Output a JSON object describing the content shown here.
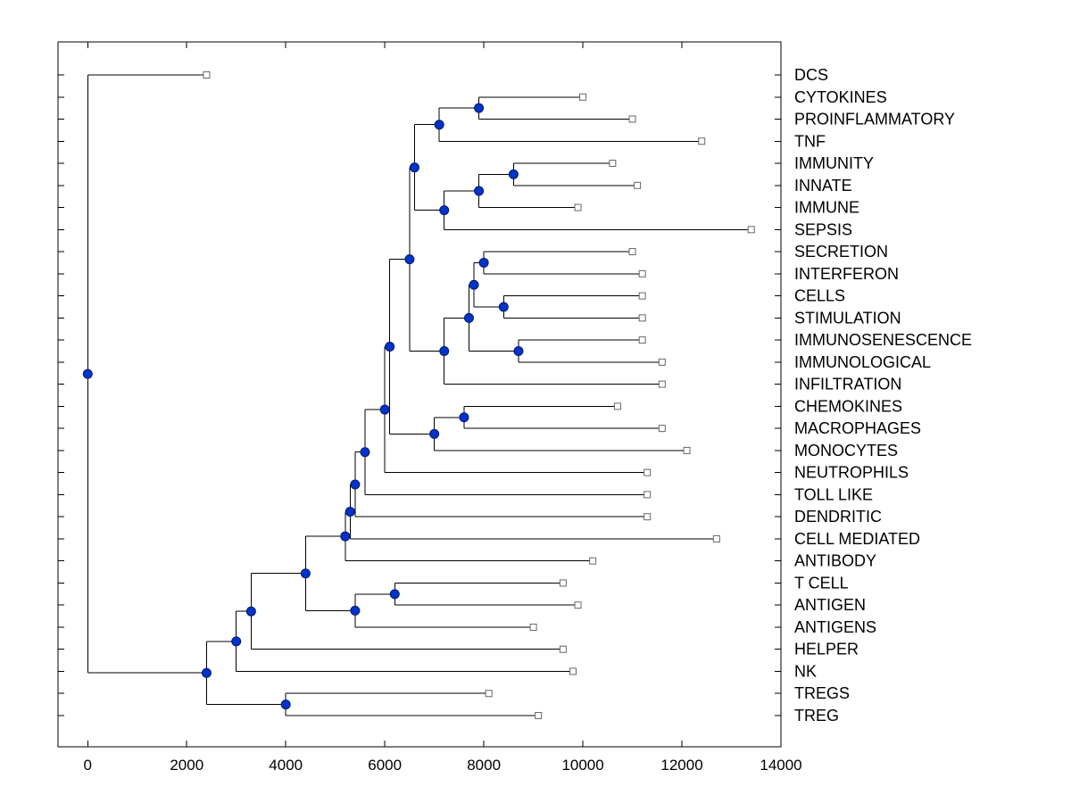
{
  "figure": {
    "background": "#ffffff"
  },
  "chart_data": {
    "type": "dendrogram",
    "orientation": "horizontal-right-labels",
    "title": "",
    "xlabel": "",
    "ylabel": "",
    "xlim": [
      -600,
      14000
    ],
    "x_ticks": [
      0,
      2000,
      4000,
      6000,
      8000,
      10000,
      12000,
      14000
    ],
    "x_tick_labels": [
      "0",
      "2000",
      "4000",
      "6000",
      "8000",
      "10000",
      "12000",
      "14000"
    ],
    "grid": false,
    "legend": null,
    "leaves": [
      {
        "label": "DCS",
        "value": 2400
      },
      {
        "label": "CYTOKINES",
        "value": 10000
      },
      {
        "label": "PROINFLAMMATORY",
        "value": 11000
      },
      {
        "label": "TNF",
        "value": 12400
      },
      {
        "label": "IMMUNITY",
        "value": 10600
      },
      {
        "label": "INNATE",
        "value": 11100
      },
      {
        "label": "IMMUNE",
        "value": 9900
      },
      {
        "label": "SEPSIS",
        "value": 13400
      },
      {
        "label": "SECRETION",
        "value": 11000
      },
      {
        "label": "INTERFERON",
        "value": 11200
      },
      {
        "label": "CELLS",
        "value": 11200
      },
      {
        "label": "STIMULATION",
        "value": 11200
      },
      {
        "label": "IMMUNOSENESCENCE",
        "value": 11200
      },
      {
        "label": "IMMUNOLOGICAL",
        "value": 11600
      },
      {
        "label": "INFILTRATION",
        "value": 11600
      },
      {
        "label": "CHEMOKINES",
        "value": 10700
      },
      {
        "label": "MACROPHAGES",
        "value": 11600
      },
      {
        "label": "MONOCYTES",
        "value": 12100
      },
      {
        "label": "NEUTROPHILS",
        "value": 11300
      },
      {
        "label": "TOLL LIKE",
        "value": 11300
      },
      {
        "label": "DENDRITIC",
        "value": 11300
      },
      {
        "label": "CELL MEDIATED",
        "value": 12700
      },
      {
        "label": "ANTIBODY",
        "value": 10200
      },
      {
        "label": "T CELL",
        "value": 9600
      },
      {
        "label": "ANTIGEN",
        "value": 9900
      },
      {
        "label": "ANTIGENS",
        "value": 9000
      },
      {
        "label": "HELPER",
        "value": 9600
      },
      {
        "label": "NK",
        "value": 9800
      },
      {
        "label": "TREGS",
        "value": 8100
      },
      {
        "label": "TREG",
        "value": 9100
      }
    ],
    "merges": [
      {
        "id": "m0",
        "children": [
          "CYTOKINES",
          "PROINFLAMMATORY"
        ],
        "value": 7900
      },
      {
        "id": "m1",
        "children": [
          "m0",
          "TNF"
        ],
        "value": 7100
      },
      {
        "id": "m2",
        "children": [
          "IMMUNITY",
          "INNATE"
        ],
        "value": 8600
      },
      {
        "id": "m3",
        "children": [
          "m2",
          "IMMUNE"
        ],
        "value": 7900
      },
      {
        "id": "m4",
        "children": [
          "m3",
          "SEPSIS"
        ],
        "value": 7200
      },
      {
        "id": "m5",
        "children": [
          "m1",
          "m4"
        ],
        "value": 6600
      },
      {
        "id": "m6",
        "children": [
          "SECRETION",
          "INTERFERON"
        ],
        "value": 8000
      },
      {
        "id": "m7",
        "children": [
          "CELLS",
          "STIMULATION"
        ],
        "value": 8400
      },
      {
        "id": "m8",
        "children": [
          "m6",
          "m7"
        ],
        "value": 7800
      },
      {
        "id": "m9",
        "children": [
          "IMMUNOSENESCENCE",
          "IMMUNOLOGICAL"
        ],
        "value": 8700
      },
      {
        "id": "m10",
        "children": [
          "m8",
          "m9"
        ],
        "value": 7700
      },
      {
        "id": "m11",
        "children": [
          "m10",
          "INFILTRATION"
        ],
        "value": 7200
      },
      {
        "id": "m12",
        "children": [
          "m5",
          "m11"
        ],
        "value": 6500
      },
      {
        "id": "m13",
        "children": [
          "CHEMOKINES",
          "MACROPHAGES"
        ],
        "value": 7600
      },
      {
        "id": "m14",
        "children": [
          "m13",
          "MONOCYTES"
        ],
        "value": 7000
      },
      {
        "id": "m15",
        "children": [
          "m12",
          "m14"
        ],
        "value": 6100
      },
      {
        "id": "m16",
        "children": [
          "m15",
          "NEUTROPHILS"
        ],
        "value": 6000
      },
      {
        "id": "m17",
        "children": [
          "m16",
          "TOLL LIKE"
        ],
        "value": 5600
      },
      {
        "id": "m18",
        "children": [
          "m17",
          "DENDRITIC"
        ],
        "value": 5400
      },
      {
        "id": "m19",
        "children": [
          "m18",
          "CELL MEDIATED"
        ],
        "value": 5300
      },
      {
        "id": "m20",
        "children": [
          "m19",
          "ANTIBODY"
        ],
        "value": 5200
      },
      {
        "id": "m21",
        "children": [
          "T CELL",
          "ANTIGEN"
        ],
        "value": 6200
      },
      {
        "id": "m22",
        "children": [
          "m21",
          "ANTIGENS"
        ],
        "value": 5400
      },
      {
        "id": "m23",
        "children": [
          "m20",
          "m22"
        ],
        "value": 4400
      },
      {
        "id": "m24",
        "children": [
          "m23",
          "HELPER"
        ],
        "value": 3300
      },
      {
        "id": "m25",
        "children": [
          "m24",
          "NK"
        ],
        "value": 3000
      },
      {
        "id": "m26",
        "children": [
          "TREGS",
          "TREG"
        ],
        "value": 4000
      },
      {
        "id": "m27",
        "children": [
          "m25",
          "m26"
        ],
        "value": 2400
      },
      {
        "id": "m28",
        "children": [
          "DCS",
          "m27"
        ],
        "value": 0
      }
    ],
    "colors": {
      "branch_line": "#000000",
      "node_fill": "#0033cc",
      "node_edge": "#001a66",
      "leaf_marker_fill": "#ffffff",
      "leaf_marker_edge": "#666666",
      "axis": "#000000",
      "text": "#000000"
    }
  }
}
